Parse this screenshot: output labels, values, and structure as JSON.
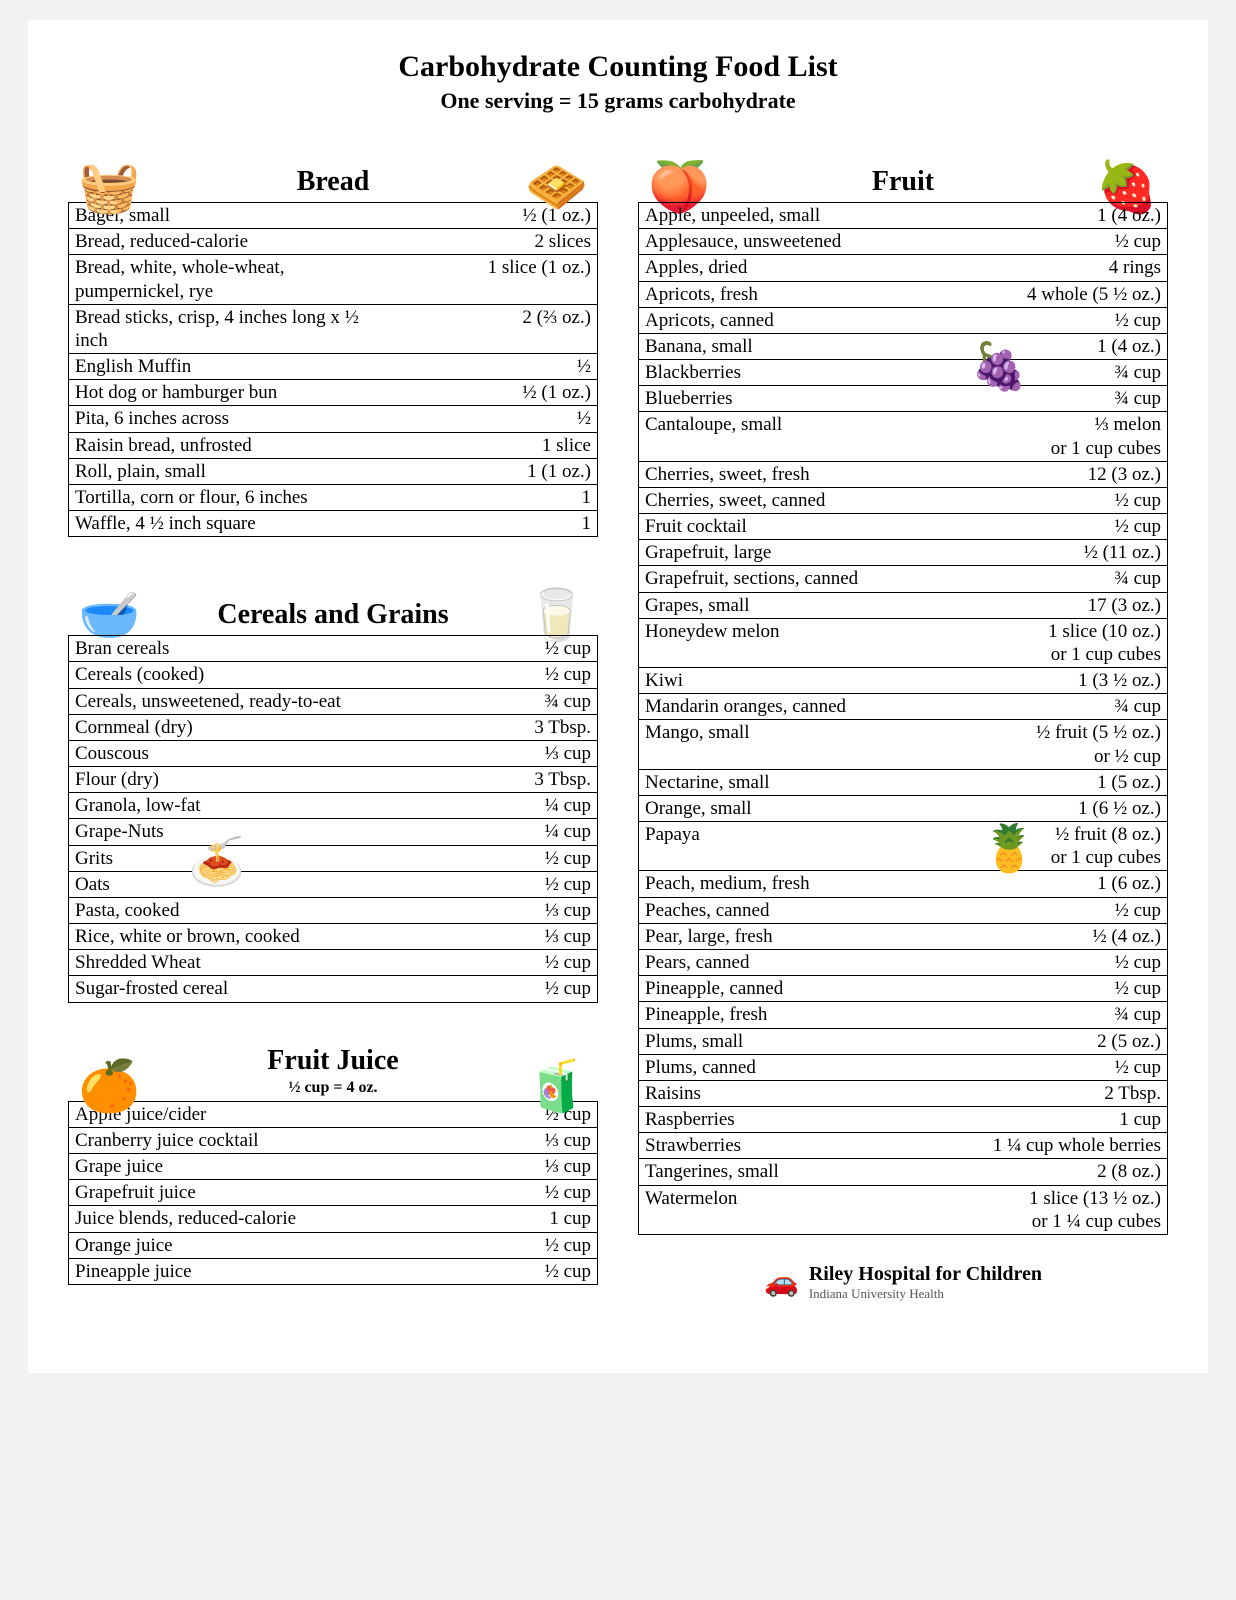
{
  "header": {
    "title": "Carbohydrate Counting Food List",
    "subtitle": "One serving = 15 grams carbohydrate"
  },
  "sections": {
    "bread": {
      "heading": "Bread",
      "icon_left": "🧺",
      "icon_right": "🧇",
      "rows": [
        {
          "name": "Bagel, small",
          "amount": "½ (1 oz.)"
        },
        {
          "name": "Bread, reduced-calorie",
          "amount": "2 slices"
        },
        {
          "name": "Bread, white, whole-wheat, pumpernickel, rye",
          "amount": "1 slice (1 oz.)"
        },
        {
          "name": "Bread sticks, crisp, 4 inches long x ½ inch",
          "amount": "2 (⅔ oz.)"
        },
        {
          "name": "English Muffin",
          "amount": "½"
        },
        {
          "name": "Hot dog or hamburger bun",
          "amount": "½ (1 oz.)"
        },
        {
          "name": "Pita, 6 inches across",
          "amount": "½"
        },
        {
          "name": "Raisin bread, unfrosted",
          "amount": "1 slice"
        },
        {
          "name": "Roll, plain, small",
          "amount": "1 (1 oz.)"
        },
        {
          "name": "Tortilla, corn or flour, 6 inches",
          "amount": "1"
        },
        {
          "name": "Waffle, 4 ½ inch square",
          "amount": "1"
        }
      ]
    },
    "cereals": {
      "heading": "Cereals and Grains",
      "icon_left": "🥣",
      "icon_right": "🥛",
      "rows": [
        {
          "name": "Bran cereals",
          "amount": "½ cup"
        },
        {
          "name": "Cereals (cooked)",
          "amount": "½ cup"
        },
        {
          "name": "Cereals, unsweetened, ready-to-eat",
          "amount": "¾ cup"
        },
        {
          "name": "Cornmeal (dry)",
          "amount": "3 Tbsp."
        },
        {
          "name": "Couscous",
          "amount": "⅓ cup"
        },
        {
          "name": "Flour (dry)",
          "amount": "3 Tbsp."
        },
        {
          "name": "Granola, low-fat",
          "amount": "¼ cup"
        },
        {
          "name": "Grape-Nuts",
          "amount": "¼ cup"
        },
        {
          "name": "Grits",
          "amount": "½ cup"
        },
        {
          "name": "Oats",
          "amount": "½ cup"
        },
        {
          "name": "Pasta, cooked",
          "amount": "⅓ cup"
        },
        {
          "name": "Rice, white or brown, cooked",
          "amount": "⅓ cup"
        },
        {
          "name": "Shredded Wheat",
          "amount": "½ cup"
        },
        {
          "name": "Sugar-frosted cereal",
          "amount": "½ cup"
        }
      ],
      "overlay_emoji": "🍝"
    },
    "juice": {
      "heading": "Fruit Juice",
      "subhead": "½ cup = 4 oz.",
      "icon_left": "🍊",
      "icon_right": "🧃",
      "rows": [
        {
          "name": "Apple juice/cider",
          "amount": "½ cup"
        },
        {
          "name": "Cranberry juice cocktail",
          "amount": "⅓ cup"
        },
        {
          "name": "Grape juice",
          "amount": "⅓ cup"
        },
        {
          "name": "Grapefruit juice",
          "amount": "½ cup"
        },
        {
          "name": "Juice blends, reduced-calorie",
          "amount": "1 cup"
        },
        {
          "name": "Orange juice",
          "amount": "½ cup"
        },
        {
          "name": "Pineapple juice",
          "amount": "½ cup"
        }
      ]
    },
    "fruit": {
      "heading": "Fruit",
      "icon_left": "🍑",
      "icon_right": "🍓",
      "rows": [
        {
          "name": "Apple, unpeeled, small",
          "amount": "1 (4 oz.)"
        },
        {
          "name": "Applesauce, unsweetened",
          "amount": "½ cup"
        },
        {
          "name": "Apples, dried",
          "amount": "4 rings"
        },
        {
          "name": "Apricots, fresh",
          "amount": "4 whole (5 ½ oz.)"
        },
        {
          "name": "Apricots, canned",
          "amount": "½ cup"
        },
        {
          "name": "Banana, small",
          "amount": "1 (4 oz.)"
        },
        {
          "name": "Blackberries",
          "amount": "¾ cup"
        },
        {
          "name": "Blueberries",
          "amount": "¾ cup"
        },
        {
          "name": "Cantaloupe, small",
          "amount": "⅓ melon or 1 cup cubes"
        },
        {
          "name": "Cherries, sweet, fresh",
          "amount": "12 (3 oz.)"
        },
        {
          "name": "Cherries, sweet, canned",
          "amount": "½ cup"
        },
        {
          "name": "Fruit cocktail",
          "amount": "½ cup"
        },
        {
          "name": "Grapefruit, large",
          "amount": "½ (11 oz.)"
        },
        {
          "name": "Grapefruit, sections, canned",
          "amount": "¾ cup"
        },
        {
          "name": "Grapes, small",
          "amount": "17 (3 oz.)"
        },
        {
          "name": "Honeydew melon",
          "amount": "1 slice (10 oz.) or 1 cup cubes"
        },
        {
          "name": "Kiwi",
          "amount": "1 (3 ½ oz.)"
        },
        {
          "name": "Mandarin oranges, canned",
          "amount": "¾ cup"
        },
        {
          "name": "Mango, small",
          "amount": "½ fruit (5 ½ oz.) or ½ cup"
        },
        {
          "name": "Nectarine, small",
          "amount": "1 (5 oz.)"
        },
        {
          "name": "Orange, small",
          "amount": "1 (6 ½ oz.)"
        },
        {
          "name": "Papaya",
          "amount": "½ fruit (8 oz.) or 1 cup cubes"
        },
        {
          "name": "Peach, medium, fresh",
          "amount": "1 (6 oz.)"
        },
        {
          "name": "Peaches, canned",
          "amount": "½ cup"
        },
        {
          "name": "Pear, large, fresh",
          "amount": "½ (4 oz.)"
        },
        {
          "name": "Pears, canned",
          "amount": "½ cup"
        },
        {
          "name": "Pineapple, canned",
          "amount": "½ cup"
        },
        {
          "name": "Pineapple, fresh",
          "amount": "¾ cup"
        },
        {
          "name": "Plums, small",
          "amount": "2 (5 oz.)"
        },
        {
          "name": "Plums, canned",
          "amount": "½ cup"
        },
        {
          "name": "Raisins",
          "amount": "2 Tbsp."
        },
        {
          "name": "Raspberries",
          "amount": "1 cup"
        },
        {
          "name": "Strawberries",
          "amount": "1 ¼ cup whole berries"
        },
        {
          "name": "Tangerines, small",
          "amount": "2 (8 oz.)"
        },
        {
          "name": "Watermelon",
          "amount": "1 slice (13 ½ oz.) or 1 ¼ cup cubes"
        }
      ],
      "overlay_grapes": "🍇",
      "overlay_pineapple": "🍍"
    }
  },
  "footer": {
    "org_name": "Riley Hospital for Children",
    "org_sub": "Indiana University Health",
    "logo": "🚗"
  },
  "style": {
    "title_fontsize": 30,
    "subtitle_fontsize": 22,
    "section_heading_fontsize": 28,
    "row_fontsize": 19,
    "border_color": "#000000",
    "background": "#ffffff",
    "page_background": "#f2f2f2"
  }
}
